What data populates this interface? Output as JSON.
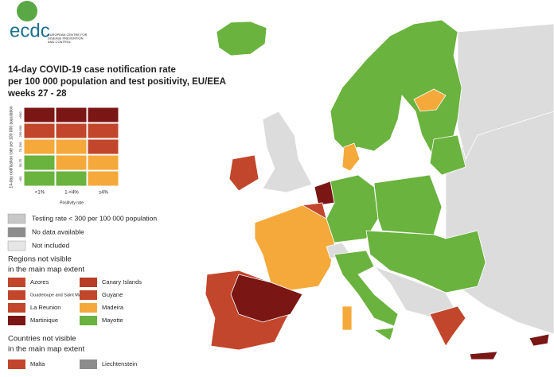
{
  "logo": {
    "name": "ecdc",
    "subtitle_lines": [
      "EUROPEAN CENTRE FOR",
      "DISEASE PREVENTION",
      "AND CONTROL"
    ]
  },
  "title_lines": [
    "14-day COVID-19 case notification rate",
    "per 100 000 population and test positivity, EU/EEA",
    "weeks 27 - 28"
  ],
  "matrix": {
    "y_label": "14-day notification rate per 100 000 population",
    "row_labels": [
      ">500",
      "200-500",
      "75-200",
      "50-75",
      "<50"
    ],
    "column_labels": [
      "<1%",
      "1-<4%",
      "≥4%"
    ],
    "x_label": "Positivity rate",
    "cells": [
      [
        "#7a1614",
        "#7a1614",
        "#7a1614"
      ],
      [
        "#c2462b",
        "#c2462b",
        "#c2462b"
      ],
      [
        "#f5a93a",
        "#f5a93a",
        "#c2462b"
      ],
      [
        "#6ab33e",
        "#f5a93a",
        "#f5a93a"
      ],
      [
        "#6ab33e",
        "#6ab33e",
        "#f5a93a"
      ]
    ]
  },
  "legend": [
    {
      "label": "Testing rate < 300 per 100 000 population",
      "color": "#c8c8c8"
    },
    {
      "label": "No data available",
      "color": "#8c8c8c"
    },
    {
      "label": "Not included",
      "color": "#e6e6e6"
    }
  ],
  "regions_heading": [
    "Regions not visible",
    "in the main map extent"
  ],
  "regions": [
    {
      "name": "Azores",
      "color": "#c2462b"
    },
    {
      "name": "Canary Islands",
      "color": "#b83c26"
    },
    {
      "name": "Guadeloupe and Saint Martin",
      "color": "#c2462b"
    },
    {
      "name": "Guyane",
      "color": "#c2462b"
    },
    {
      "name": "La Reunion",
      "color": "#c2462b"
    },
    {
      "name": "Madeira",
      "color": "#f5a93a"
    },
    {
      "name": "Martinique",
      "color": "#7a1614"
    },
    {
      "name": "Mayotte",
      "color": "#6ab33e"
    }
  ],
  "countries_heading": [
    "Countries not visible",
    "in the main map extent"
  ],
  "countries": [
    {
      "name": "Malta",
      "color": "#c2462b"
    },
    {
      "name": "Liechtenstein",
      "color": "#8c8c8c"
    }
  ]
}
